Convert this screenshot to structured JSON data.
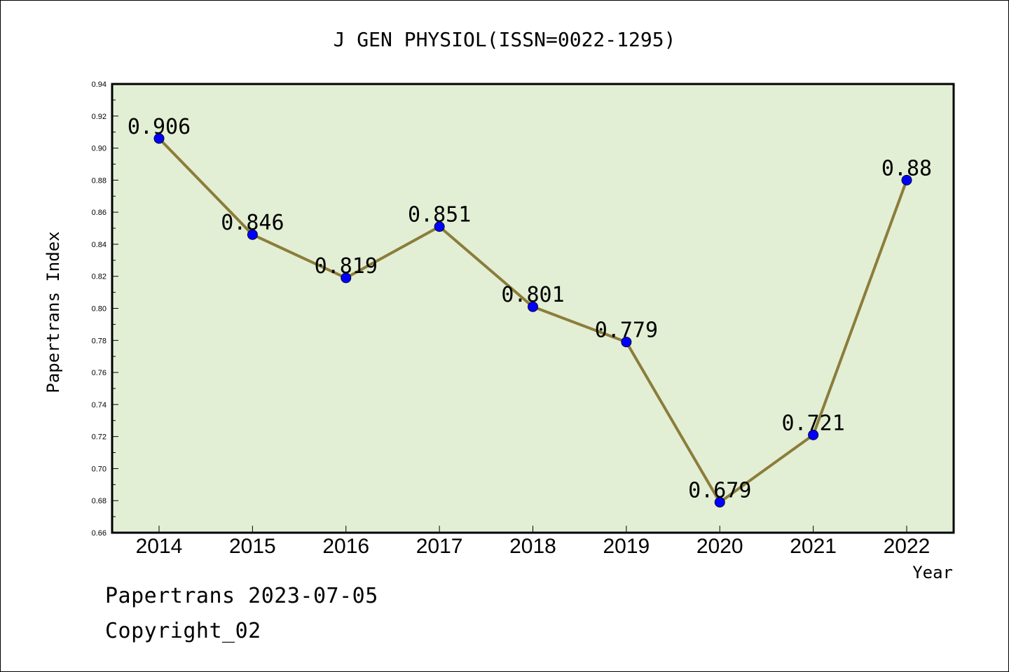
{
  "chart_data": {
    "type": "line",
    "title": "J GEN PHYSIOL(ISSN=0022-1295)",
    "xlabel": "Year",
    "ylabel": "Papertrans Index",
    "x": [
      "2014",
      "2015",
      "2016",
      "2017",
      "2018",
      "2019",
      "2020",
      "2021",
      "2022"
    ],
    "series": [
      {
        "values": [
          0.906,
          0.846,
          0.819,
          0.851,
          0.801,
          0.779,
          0.679,
          0.721,
          0.88
        ],
        "labels": [
          "0.906",
          "0.846",
          "0.819",
          "0.851",
          "0.801",
          "0.779",
          "0.679",
          "0.721",
          "0.88"
        ]
      }
    ],
    "ylim": [
      0.66,
      0.94
    ],
    "yticks": [
      "0.66",
      "0.68",
      "0.70",
      "0.72",
      "0.74",
      "0.76",
      "0.78",
      "0.80",
      "0.82",
      "0.84",
      "0.86",
      "0.88",
      "0.90",
      "0.92",
      "0.94"
    ],
    "grid": false,
    "colors": {
      "plot_background": "#e2efd5",
      "line": "#8b7d3a",
      "marker": "#0000ff"
    }
  },
  "footer": {
    "line1": "Papertrans 2023-07-05",
    "line2": "Copyright_02"
  }
}
